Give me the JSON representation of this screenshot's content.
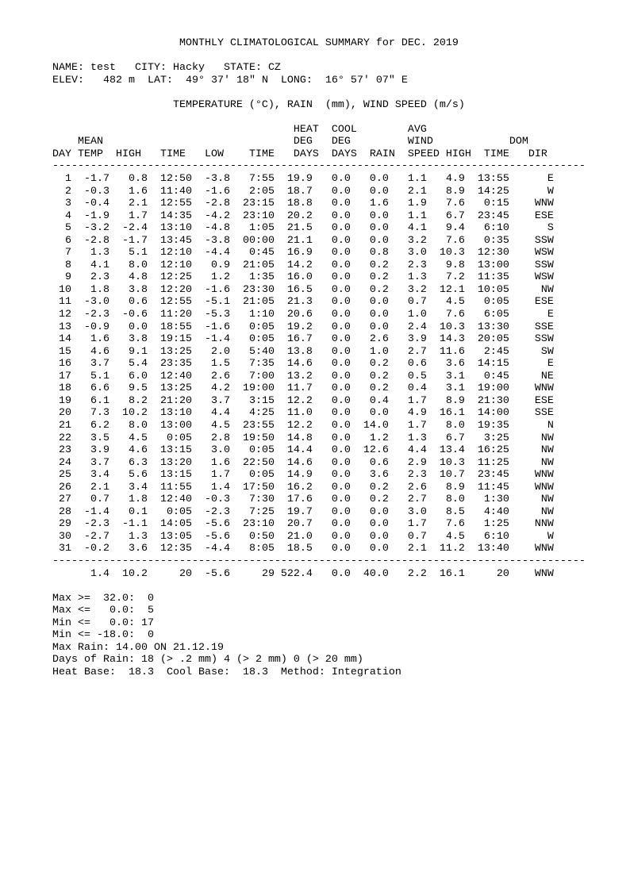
{
  "title": "MONTHLY CLIMATOLOGICAL SUMMARY for DEC. 2019",
  "station": {
    "line": "NAME: test   CITY: Hacky   STATE: CZ",
    "name": "test",
    "city": "Hacky",
    "state": "CZ",
    "elevation_line": "ELEV:   482 m  LAT:  49° 37' 18\" N  LONG:  16° 57' 07\" E",
    "elevation": "482 m",
    "latitude": "49° 37' 18\" N",
    "longitude": "16° 57' 07\" E"
  },
  "units_line": "TEMPERATURE (°C), RAIN  (mm), WIND SPEED (m/s)",
  "table": {
    "columns": [
      "DAY",
      "MEAN TEMP",
      "HIGH",
      "TIME",
      "LOW",
      "TIME",
      "HEAT DEG DAYS",
      "COOL DEG DAYS",
      "RAIN",
      "AVG WIND SPEED",
      "HIGH",
      "TIME",
      "DOM DIR"
    ],
    "header_lines": [
      "                                      HEAT  COOL        AVG",
      "    MEAN                              DEG   DEG         WIND            DOM",
      "DAY TEMP  HIGH   TIME   LOW    TIME   DAYS  DAYS  RAIN  SPEED HIGH  TIME   DIR"
    ],
    "rows": [
      [
        "1",
        "-1.7",
        "0.8",
        "12:50",
        "-3.8",
        "7:55",
        "19.9",
        "0.0",
        "0.0",
        "1.1",
        "4.9",
        "13:55",
        "E"
      ],
      [
        "2",
        "-0.3",
        "1.6",
        "11:40",
        "-1.6",
        "2:05",
        "18.7",
        "0.0",
        "0.0",
        "2.1",
        "8.9",
        "14:25",
        "W"
      ],
      [
        "3",
        "-0.4",
        "2.1",
        "12:55",
        "-2.8",
        "23:15",
        "18.8",
        "0.0",
        "1.6",
        "1.9",
        "7.6",
        "0:15",
        "WNW"
      ],
      [
        "4",
        "-1.9",
        "1.7",
        "14:35",
        "-4.2",
        "23:10",
        "20.2",
        "0.0",
        "0.0",
        "1.1",
        "6.7",
        "23:45",
        "ESE"
      ],
      [
        "5",
        "-3.2",
        "-2.4",
        "13:10",
        "-4.8",
        "1:05",
        "21.5",
        "0.0",
        "0.0",
        "4.1",
        "9.4",
        "6:10",
        "S"
      ],
      [
        "6",
        "-2.8",
        "-1.7",
        "13:45",
        "-3.8",
        "00:00",
        "21.1",
        "0.0",
        "0.0",
        "3.2",
        "7.6",
        "0:35",
        "SSW"
      ],
      [
        "7",
        "1.3",
        "5.1",
        "12:10",
        "-4.4",
        "0:45",
        "16.9",
        "0.0",
        "0.8",
        "3.0",
        "10.3",
        "12:30",
        "WSW"
      ],
      [
        "8",
        "4.1",
        "8.0",
        "12:10",
        "0.9",
        "21:05",
        "14.2",
        "0.0",
        "0.2",
        "2.3",
        "9.8",
        "13:00",
        "SSW"
      ],
      [
        "9",
        "2.3",
        "4.8",
        "12:25",
        "1.2",
        "1:35",
        "16.0",
        "0.0",
        "0.2",
        "1.3",
        "7.2",
        "11:35",
        "WSW"
      ],
      [
        "10",
        "1.8",
        "3.8",
        "12:20",
        "-1.6",
        "23:30",
        "16.5",
        "0.0",
        "0.2",
        "3.2",
        "12.1",
        "10:05",
        "NW"
      ],
      [
        "11",
        "-3.0",
        "0.6",
        "12:55",
        "-5.1",
        "21:05",
        "21.3",
        "0.0",
        "0.0",
        "0.7",
        "4.5",
        "0:05",
        "ESE"
      ],
      [
        "12",
        "-2.3",
        "-0.6",
        "11:20",
        "-5.3",
        "1:10",
        "20.6",
        "0.0",
        "0.0",
        "1.0",
        "7.6",
        "6:05",
        "E"
      ],
      [
        "13",
        "-0.9",
        "0.0",
        "18:55",
        "-1.6",
        "0:05",
        "19.2",
        "0.0",
        "0.0",
        "2.4",
        "10.3",
        "13:30",
        "SSE"
      ],
      [
        "14",
        "1.6",
        "3.8",
        "19:15",
        "-1.4",
        "0:05",
        "16.7",
        "0.0",
        "2.6",
        "3.9",
        "14.3",
        "20:05",
        "SSW"
      ],
      [
        "15",
        "4.6",
        "9.1",
        "13:25",
        "2.0",
        "5:40",
        "13.8",
        "0.0",
        "1.0",
        "2.7",
        "11.6",
        "2:45",
        "SW"
      ],
      [
        "16",
        "3.7",
        "5.4",
        "23:35",
        "1.5",
        "7:35",
        "14.6",
        "0.0",
        "0.2",
        "0.6",
        "3.6",
        "14:15",
        "E"
      ],
      [
        "17",
        "5.1",
        "6.0",
        "12:40",
        "2.6",
        "7:00",
        "13.2",
        "0.0",
        "0.2",
        "0.5",
        "3.1",
        "0:45",
        "NE"
      ],
      [
        "18",
        "6.6",
        "9.5",
        "13:25",
        "4.2",
        "19:00",
        "11.7",
        "0.0",
        "0.2",
        "0.4",
        "3.1",
        "19:00",
        "WNW"
      ],
      [
        "19",
        "6.1",
        "8.2",
        "21:20",
        "3.7",
        "3:15",
        "12.2",
        "0.0",
        "0.4",
        "1.7",
        "8.9",
        "21:30",
        "ESE"
      ],
      [
        "20",
        "7.3",
        "10.2",
        "13:10",
        "4.4",
        "4:25",
        "11.0",
        "0.0",
        "0.0",
        "4.9",
        "16.1",
        "14:00",
        "SSE"
      ],
      [
        "21",
        "6.2",
        "8.0",
        "13:00",
        "4.5",
        "23:55",
        "12.2",
        "0.0",
        "14.0",
        "1.7",
        "8.0",
        "19:35",
        "N"
      ],
      [
        "22",
        "3.5",
        "4.5",
        "0:05",
        "2.8",
        "19:50",
        "14.8",
        "0.0",
        "1.2",
        "1.3",
        "6.7",
        "3:25",
        "NW"
      ],
      [
        "23",
        "3.9",
        "4.6",
        "13:15",
        "3.0",
        "0:05",
        "14.4",
        "0.0",
        "12.6",
        "4.4",
        "13.4",
        "16:25",
        "NW"
      ],
      [
        "24",
        "3.7",
        "6.3",
        "13:20",
        "1.6",
        "22:50",
        "14.6",
        "0.0",
        "0.6",
        "2.9",
        "10.3",
        "11:25",
        "NW"
      ],
      [
        "25",
        "3.4",
        "5.6",
        "13:15",
        "1.7",
        "0:05",
        "14.9",
        "0.0",
        "3.6",
        "2.3",
        "10.7",
        "23:45",
        "WNW"
      ],
      [
        "26",
        "2.1",
        "3.4",
        "11:55",
        "1.4",
        "17:50",
        "16.2",
        "0.0",
        "0.2",
        "2.6",
        "8.9",
        "11:45",
        "WNW"
      ],
      [
        "27",
        "0.7",
        "1.8",
        "12:40",
        "-0.3",
        "7:30",
        "17.6",
        "0.0",
        "0.2",
        "2.7",
        "8.0",
        "1:30",
        "NW"
      ],
      [
        "28",
        "-1.4",
        "0.1",
        "0:05",
        "-2.3",
        "7:25",
        "19.7",
        "0.0",
        "0.0",
        "3.0",
        "8.5",
        "4:40",
        "NW"
      ],
      [
        "29",
        "-2.3",
        "-1.1",
        "14:05",
        "-5.6",
        "23:10",
        "20.7",
        "0.0",
        "0.0",
        "1.7",
        "7.6",
        "1:25",
        "NNW"
      ],
      [
        "30",
        "-2.7",
        "1.3",
        "13:05",
        "-5.6",
        "0:50",
        "21.0",
        "0.0",
        "0.0",
        "0.7",
        "4.5",
        "6:10",
        "W"
      ],
      [
        "31",
        "-0.2",
        "3.6",
        "12:35",
        "-4.4",
        "8:05",
        "18.5",
        "0.0",
        "0.0",
        "2.1",
        "11.2",
        "13:40",
        "WNW"
      ]
    ],
    "summary_row": [
      "",
      "1.4",
      "10.2",
      "20",
      "-5.6",
      "29",
      "522.4",
      "0.0",
      "40.0",
      "2.2",
      "16.1",
      "20",
      "WNW"
    ]
  },
  "footer": [
    "Max >=  32.0:  0",
    "Max <=   0.0:  5",
    "Min <=   0.0: 17",
    "Min <= -18.0:  0",
    "Max Rain: 14.00 ON 21.12.19",
    "Days of Rain: 18 (> .2 mm) 4 (> 2 mm) 0 (> 20 mm)",
    "Heat Base:  18.3  Cool Base:  18.3  Method: Integration"
  ]
}
